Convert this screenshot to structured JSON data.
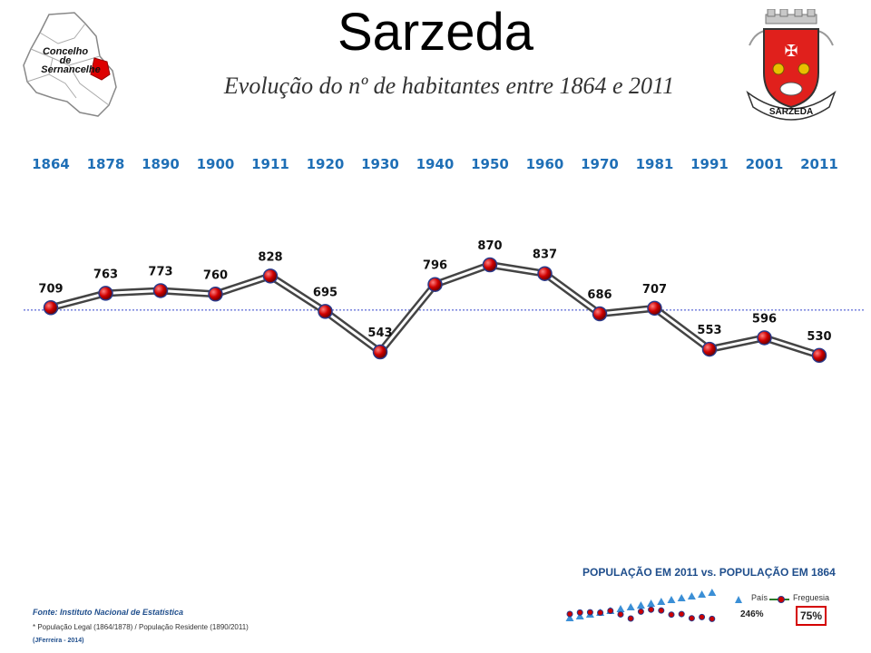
{
  "header": {
    "title": "Sarzeda",
    "subtitle": "Evolução do nº de habitantes entre 1864 e 2011"
  },
  "map_logo": {
    "line1": "Concelho",
    "line2": "de",
    "line3": "Sernancelhe"
  },
  "crest": {
    "label": "SARZEDA"
  },
  "chart_data": {
    "type": "line",
    "x": [
      "1864",
      "1878",
      "1890",
      "1900",
      "1911",
      "1920",
      "1930",
      "1940",
      "1950",
      "1960",
      "1970",
      "1981",
      "1991",
      "2001",
      "2011"
    ],
    "series": [
      {
        "values": [
          709,
          763,
          773,
          760,
          828,
          695,
          543,
          796,
          870,
          837,
          686,
          707,
          553,
          596,
          530
        ]
      }
    ],
    "reference_line": 700,
    "colors": {
      "year_labels": "#1f6fb6",
      "marker": "#cc0000",
      "reference": "#3344cc"
    }
  },
  "comparison": {
    "title": "POPULAÇÃO EM 2011 vs. POPULAÇÃO EM 1864",
    "legend_pais": "País",
    "legend_freguesia": "Freguesia",
    "pais_pct": "246%",
    "freguesia_pct": "75%"
  },
  "footer": {
    "source": "Fonte: Instituto Nacional de Estatística",
    "note": "* População Legal (1864/1878) / População Residente (1890/2011)",
    "author": "(JFerreira - 2014)"
  }
}
